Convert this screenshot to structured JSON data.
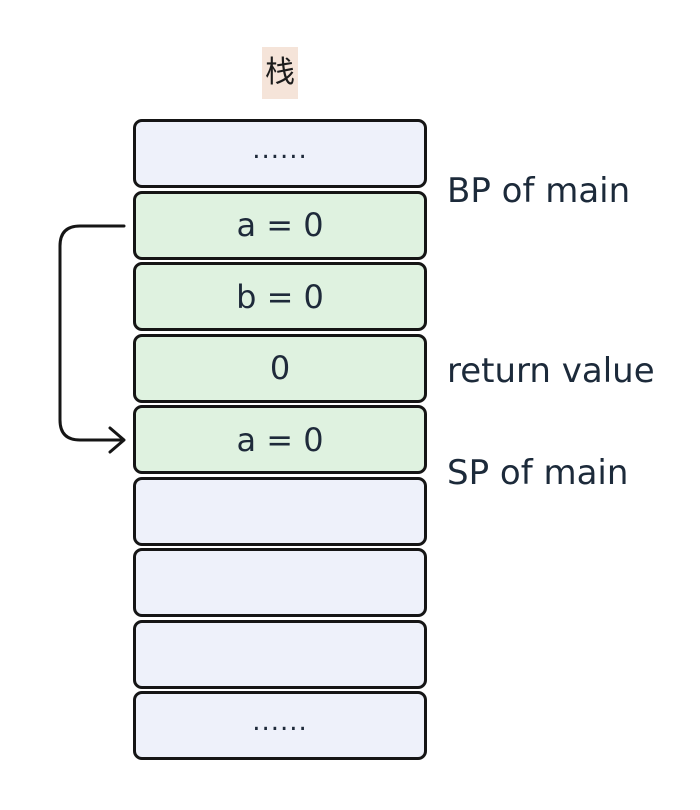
{
  "title": "栈",
  "stack_cells": [
    {
      "text": "......",
      "style": "empty"
    },
    {
      "text": "a = 0",
      "style": "frame"
    },
    {
      "text": "b = 0",
      "style": "frame"
    },
    {
      "text": "0",
      "style": "frame"
    },
    {
      "text": "a = 0",
      "style": "frame"
    },
    {
      "text": "",
      "style": "empty"
    },
    {
      "text": "",
      "style": "empty"
    },
    {
      "text": "",
      "style": "empty"
    },
    {
      "text": "......",
      "style": "empty"
    }
  ],
  "labels": {
    "bp": "BP of main",
    "return_value": "return value",
    "sp": "SP of main"
  },
  "colors": {
    "empty_fill": "#eef1fa",
    "frame_fill": "#dff2e0",
    "title_bg": "#f5e4d9",
    "border": "#151515"
  }
}
